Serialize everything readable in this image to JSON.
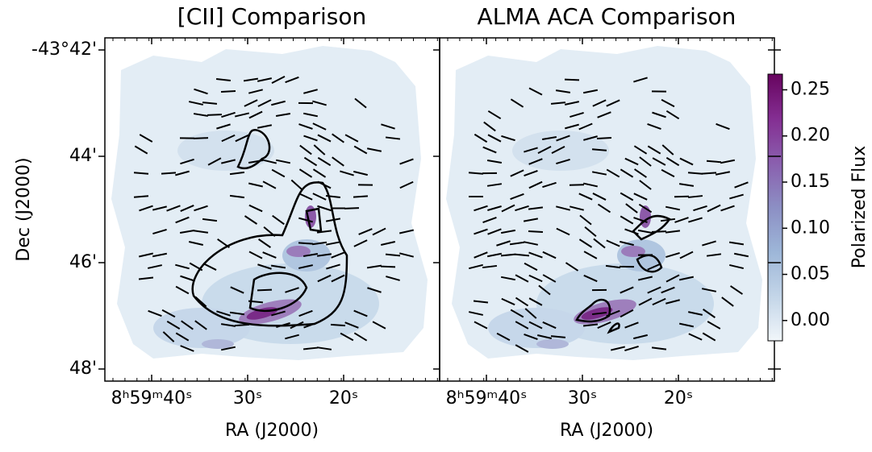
{
  "chart_data": [
    {
      "type": "map",
      "title": "[CII] Comparison",
      "xlabel": "RA (J2000)",
      "ylabel": "Dec (J2000)",
      "xticks": [
        "8ʰ59ᵐ40ˢ",
        "30ˢ",
        "20ˢ"
      ],
      "yticks": [
        "-43°42'",
        "44'",
        "46'",
        "48'"
      ]
    },
    {
      "type": "map",
      "title": "ALMA ACA Comparison",
      "xlabel": "RA (J2000)",
      "xticks": [
        "8ʰ59ᵐ40ˢ",
        "30ˢ",
        "20ˢ"
      ]
    },
    {
      "type": "colorbar",
      "label": "Polarized Flux",
      "clim": [
        -0.022,
        0.267
      ],
      "cticks": [
        {
          "value": 0,
          "label": "0.00"
        },
        {
          "value": 0.05,
          "label": "0.05"
        },
        {
          "value": 0.1,
          "label": "0.10"
        },
        {
          "value": 0.15,
          "label": "0.15"
        },
        {
          "value": 0.2,
          "label": "0.20"
        },
        {
          "value": 0.25,
          "label": "0.25"
        }
      ],
      "colors": [
        "#f1f6fa",
        "#c3d5e8",
        "#9db6d8",
        "#8c8fc4",
        "#8a5fae",
        "#842e92",
        "#67045f"
      ]
    }
  ]
}
